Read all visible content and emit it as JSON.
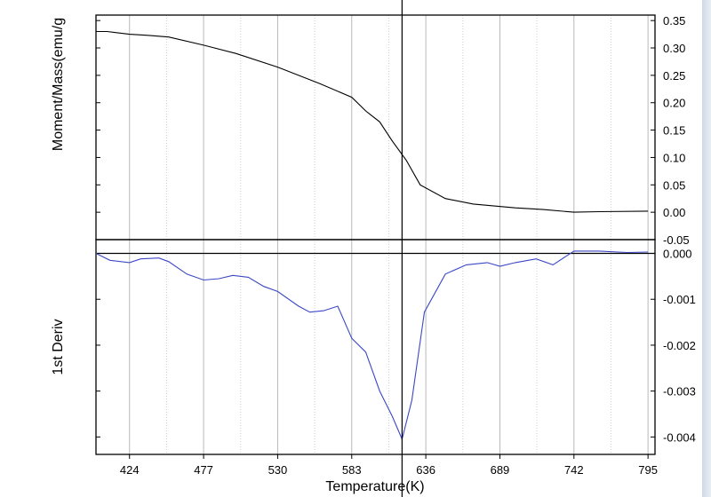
{
  "chart_data": {
    "type": "line",
    "xlabel": "Temperature(K)",
    "x_ticks": [
      424,
      477,
      530,
      583,
      636,
      689,
      742,
      795
    ],
    "xlim": [
      400,
      800
    ],
    "cursor_x": 619,
    "panels": [
      {
        "id": "moment",
        "ylabel": "Moment/Mass(emu/g",
        "ylim": [
          -0.05,
          0.36
        ],
        "y_ticks": [
          -0.05,
          0.0,
          0.05,
          0.1,
          0.15,
          0.2,
          0.25,
          0.3,
          0.35
        ],
        "y_tick_labels": [
          "-0.05",
          "0.00",
          "0.05",
          "0.10",
          "0.15",
          "0.20",
          "0.25",
          "0.30",
          "0.35"
        ],
        "zero_line": false,
        "series": [
          {
            "color": "#000000",
            "x": [
              400,
              408,
              424,
              437,
              452,
              477,
              500,
              530,
              560,
              583,
              593,
              603,
              612,
              622,
              632,
              650,
              670,
              700,
              720,
              742,
              760,
              795
            ],
            "y": [
              0.33,
              0.33,
              0.325,
              0.323,
              0.32,
              0.305,
              0.29,
              0.265,
              0.235,
              0.21,
              0.185,
              0.165,
              0.13,
              0.095,
              0.05,
              0.025,
              0.015,
              0.008,
              0.005,
              0.0,
              0.001,
              0.002
            ]
          }
        ]
      },
      {
        "id": "deriv",
        "ylabel": "1st Deriv",
        "ylim": [
          -0.00438,
          0.0003
        ],
        "y_ticks": [
          0.0,
          -0.001,
          -0.002,
          -0.003,
          -0.004
        ],
        "y_tick_labels": [
          "0.000",
          "-0.001",
          "-0.002",
          "-0.003",
          "-0.004"
        ],
        "zero_line": true,
        "series": [
          {
            "color": "#3b47c6",
            "x": [
              400,
              410,
              424,
              432,
              445,
              452,
              465,
              477,
              488,
              498,
              509,
              520,
              530,
              545,
              553,
              563,
              573,
              583,
              593,
              603,
              612,
              619,
              626,
              635,
              650,
              665,
              680,
              689,
              700,
              715,
              727,
              742,
              760,
              780,
              795
            ],
            "y": [
              0.0,
              -0.00015,
              -0.0002,
              -0.00012,
              -0.0001,
              -0.00018,
              -0.00045,
              -0.00058,
              -0.00055,
              -0.00048,
              -0.00052,
              -0.00072,
              -0.00083,
              -0.00115,
              -0.00128,
              -0.00125,
              -0.00115,
              -0.00185,
              -0.00215,
              -0.003,
              -0.00355,
              -0.00405,
              -0.0032,
              -0.00128,
              -0.00045,
              -0.00025,
              -0.0002,
              -0.00028,
              -0.0002,
              -0.00012,
              -0.00025,
              5e-05,
              5e-05,
              2e-05,
              3e-05
            ]
          }
        ]
      }
    ]
  }
}
